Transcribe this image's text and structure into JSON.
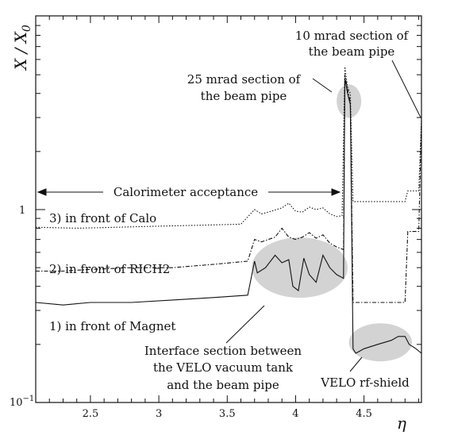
{
  "chart_data": {
    "type": "line",
    "ylabel_parts": [
      "X / X",
      "0"
    ],
    "xlabel": "η",
    "xlim": [
      2.1,
      4.92
    ],
    "ylim": [
      0.1,
      12
    ],
    "yscale": "log",
    "x_ticks": [
      2.5,
      3,
      3.5,
      4,
      4.5
    ],
    "x_tick_labels": [
      "2.5",
      "3",
      "3.5",
      "4",
      "4.5"
    ],
    "y_tick_labels": {
      "one": "1",
      "tenth_base": "10",
      "tenth_exp": "−1"
    },
    "series": [
      {
        "label": "3) in front of Calo",
        "style": "dotted",
        "x": [
          2.1,
          2.4,
          2.7,
          3.0,
          3.3,
          3.6,
          3.7,
          3.75,
          3.8,
          3.9,
          3.95,
          4.0,
          4.05,
          4.1,
          4.15,
          4.2,
          4.25,
          4.3,
          4.34,
          4.36,
          4.38,
          4.4,
          4.42,
          4.5,
          4.6,
          4.7,
          4.8,
          4.82,
          4.9,
          4.92
        ],
        "y": [
          0.81,
          0.8,
          0.81,
          0.82,
          0.83,
          0.84,
          1.0,
          0.95,
          0.97,
          1.02,
          1.08,
          0.98,
          0.97,
          1.03,
          1.0,
          1.02,
          0.95,
          0.92,
          0.93,
          5.5,
          4.3,
          4.0,
          1.1,
          1.1,
          1.1,
          1.1,
          1.1,
          1.25,
          1.25,
          3.0
        ]
      },
      {
        "label": "2) in front of RICH2",
        "style": "dashdot",
        "x": [
          2.1,
          2.3,
          2.5,
          2.8,
          3.1,
          3.4,
          3.65,
          3.7,
          3.75,
          3.85,
          3.9,
          3.95,
          4.0,
          4.05,
          4.1,
          4.15,
          4.2,
          4.25,
          4.3,
          4.35,
          4.36,
          4.38,
          4.4,
          4.42,
          4.6,
          4.8,
          4.82,
          4.9,
          4.92
        ],
        "y": [
          0.48,
          0.48,
          0.49,
          0.5,
          0.5,
          0.52,
          0.54,
          0.7,
          0.68,
          0.72,
          0.8,
          0.72,
          0.7,
          0.72,
          0.76,
          0.71,
          0.74,
          0.67,
          0.64,
          0.62,
          5.0,
          4.2,
          3.6,
          0.33,
          0.33,
          0.33,
          0.77,
          0.77,
          2.9
        ]
      },
      {
        "label": "1) in front of Magnet",
        "style": "solid",
        "x": [
          2.1,
          2.3,
          2.5,
          2.8,
          3.1,
          3.4,
          3.65,
          3.7,
          3.72,
          3.78,
          3.85,
          3.9,
          3.95,
          3.98,
          4.02,
          4.06,
          4.1,
          4.15,
          4.2,
          4.25,
          4.3,
          4.35,
          4.36,
          4.38,
          4.4,
          4.42,
          4.44,
          4.5,
          4.6,
          4.7,
          4.75,
          4.8,
          4.83,
          4.88,
          4.92
        ],
        "y": [
          0.33,
          0.32,
          0.33,
          0.33,
          0.34,
          0.35,
          0.36,
          0.54,
          0.47,
          0.5,
          0.58,
          0.53,
          0.55,
          0.4,
          0.38,
          0.56,
          0.46,
          0.42,
          0.58,
          0.5,
          0.46,
          0.44,
          4.8,
          4.0,
          3.5,
          0.19,
          0.18,
          0.19,
          0.2,
          0.21,
          0.22,
          0.22,
          0.2,
          0.19,
          0.18
        ]
      }
    ],
    "calo_acceptance": {
      "label": "Calorimeter acceptance",
      "x_range": [
        2.12,
        4.32
      ],
      "y": 1.28
    },
    "annotations": [
      {
        "id": "beam_pipe_10",
        "lines": [
          "10 mrad section of",
          "the beam pipe"
        ]
      },
      {
        "id": "beam_pipe_25",
        "lines": [
          "25 mrad section of",
          "the beam pipe"
        ]
      },
      {
        "id": "interface",
        "lines": [
          "Interface section between",
          "the VELO vacuum tank",
          "and the beam pipe"
        ]
      },
      {
        "id": "rf_shield",
        "lines": [
          "VELO rf-shield"
        ]
      }
    ],
    "shaded_regions": [
      {
        "id": "region_25mrad",
        "center_x": 4.39,
        "center_y": 3.65,
        "rx_eta": 0.09,
        "ry_px": 21
      },
      {
        "id": "region_interface",
        "center_x": 4.03,
        "center_y": 0.5,
        "rx_eta": 0.35,
        "ry_px": 38
      },
      {
        "id": "region_rf",
        "center_x": 4.62,
        "center_y": 0.205,
        "rx_eta": 0.23,
        "ry_px": 24
      }
    ],
    "colors": {
      "line": "#111111",
      "shade": "#d3d3d3"
    }
  }
}
